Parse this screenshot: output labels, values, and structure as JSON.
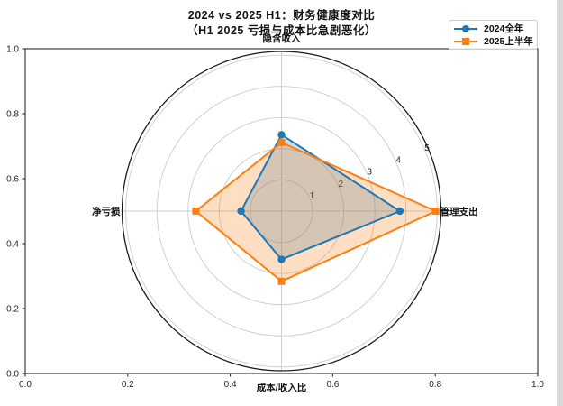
{
  "title": {
    "line1": "2024 vs 2025 H1：财务健康度对比",
    "line2": "（H1 2025 亏损与成本比急剧恶化）"
  },
  "legend": {
    "items": [
      {
        "label": "2024全年",
        "color": "#1f77b4",
        "marker": "circle"
      },
      {
        "label": "2025上半年",
        "color": "#ff7f0e",
        "marker": "square"
      }
    ]
  },
  "chart_data": {
    "type": "radar",
    "title": "2024 vs 2025 H1：财务健康度对比",
    "subtitle": "（H1 2025 亏损与成本比急剧恶化）",
    "categories": [
      "隐含收入",
      "管理支出",
      "成本/收入比",
      "净亏损"
    ],
    "angles_deg": [
      90,
      0,
      270,
      180
    ],
    "series": [
      {
        "name": "2024全年",
        "color": "#1f77b4",
        "marker": "circle",
        "values": [
          2.45,
          3.8,
          1.55,
          1.3
        ]
      },
      {
        "name": "2025上半年",
        "color": "#ff7f0e",
        "marker": "square",
        "values": [
          2.2,
          4.95,
          2.25,
          2.75
        ]
      }
    ],
    "r_ticks": [
      1,
      2,
      3,
      4,
      5
    ],
    "r_max": 5.12,
    "r_label_angle_deg": 22.5,
    "fill_alpha": 0.25,
    "grid_on": true,
    "grid_color": "#cccccc",
    "spine_color": "#1a1a1a",
    "legend_position": "upper right"
  },
  "outer_axes": {
    "x_ticks": [
      "0.0",
      "0.2",
      "0.4",
      "0.6",
      "0.8",
      "1.0"
    ],
    "y_ticks": [
      "0.0",
      "0.2",
      "0.4",
      "0.6",
      "0.8",
      "1.0"
    ]
  },
  "window": {
    "right_strip_color": "#d9d9d9"
  }
}
